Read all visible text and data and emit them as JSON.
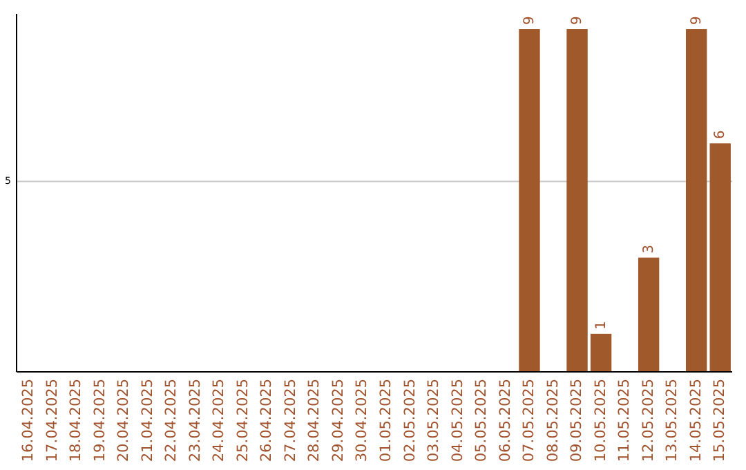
{
  "chart_data": {
    "type": "bar",
    "categories": [
      "16.04.2025",
      "17.04.2025",
      "18.04.2025",
      "19.04.2025",
      "20.04.2025",
      "21.04.2025",
      "22.04.2025",
      "23.04.2025",
      "24.04.2025",
      "25.04.2025",
      "26.04.2025",
      "27.04.2025",
      "28.04.2025",
      "29.04.2025",
      "30.04.2025",
      "01.05.2025",
      "02.05.2025",
      "03.05.2025",
      "04.05.2025",
      "05.05.2025",
      "06.05.2025",
      "07.05.2025",
      "08.05.2025",
      "09.05.2025",
      "10.05.2025",
      "11.05.2025",
      "12.05.2025",
      "13.05.2025",
      "14.05.2025",
      "15.05.2025"
    ],
    "values": [
      null,
      null,
      null,
      null,
      null,
      null,
      null,
      null,
      null,
      null,
      null,
      null,
      null,
      null,
      null,
      null,
      null,
      null,
      null,
      null,
      null,
      9,
      null,
      9,
      1,
      null,
      3,
      null,
      9,
      6
    ],
    "data_labels": true,
    "color": "#a0592a",
    "ylim": [
      0,
      9.4
    ],
    "yticks": [
      5
    ],
    "grid": "y"
  }
}
